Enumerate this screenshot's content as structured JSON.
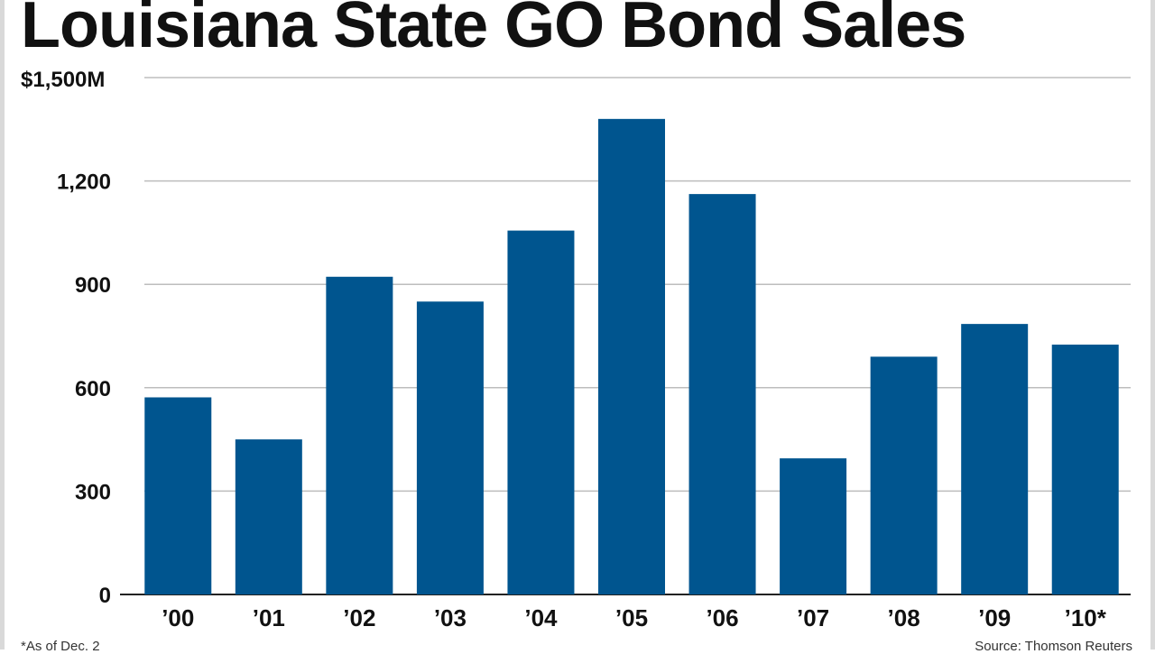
{
  "chart_data": {
    "type": "bar",
    "title": "Louisiana State GO Bond Sales",
    "categories": [
      "’00",
      "’01",
      "’02",
      "’03",
      "’04",
      "’05",
      "’06",
      "’07",
      "’08",
      "’09",
      "’10*"
    ],
    "values": [
      572,
      450,
      922,
      850,
      1056,
      1380,
      1162,
      395,
      690,
      785,
      725
    ],
    "ylim": [
      0,
      1500
    ],
    "yticks": [
      0,
      300,
      600,
      900,
      1200,
      1500
    ],
    "ytick_labels": [
      "0",
      "300",
      "600",
      "900",
      "1,200",
      "$1,500M"
    ],
    "xlabel": "",
    "ylabel": "",
    "grid": true,
    "bar_color": "#00558f",
    "footnote": "*As of Dec. 2",
    "source": "Source: Thomson Reuters"
  }
}
